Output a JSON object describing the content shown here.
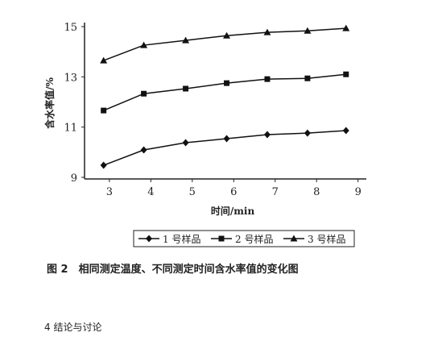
{
  "chart_data": {
    "type": "line",
    "title": "图 2　相同测定温度、不同测定时间含水率值的变化图",
    "x_label": "时间/min",
    "y_label": "含水率值/%",
    "xlim": [
      2.4,
      9.2
    ],
    "xticks": [
      3,
      4,
      5,
      6,
      7,
      8,
      9
    ],
    "ylim": [
      9,
      15
    ],
    "yticks": [
      9,
      11,
      13,
      15
    ],
    "legend": "bottom",
    "series": [
      {
        "name": "1 号样品",
        "color": "#111111",
        "marker": "diamond",
        "x": [
          2.86,
          3.83,
          4.84,
          5.83,
          6.81,
          7.78,
          8.71
        ],
        "values": [
          9.48,
          10.09,
          10.38,
          10.54,
          10.7,
          10.76,
          10.86
        ]
      },
      {
        "name": "2 号样品",
        "color": "#111111",
        "marker": "square",
        "x": [
          2.86,
          3.83,
          4.84,
          5.83,
          6.81,
          7.78,
          8.71
        ],
        "values": [
          11.66,
          12.33,
          12.53,
          12.75,
          12.91,
          12.94,
          13.1
        ]
      },
      {
        "name": "3 号样品",
        "color": "#111111",
        "marker": "triangle",
        "x": [
          2.86,
          3.83,
          4.84,
          5.83,
          6.81,
          7.78,
          8.71
        ],
        "values": [
          13.65,
          14.26,
          14.45,
          14.64,
          14.77,
          14.83,
          14.93
        ]
      }
    ]
  },
  "next_section": "4 结论与讨论"
}
